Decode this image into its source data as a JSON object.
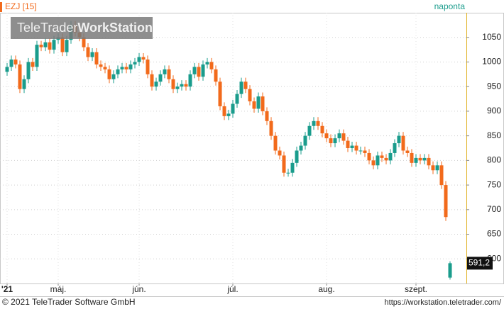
{
  "chart_data": {
    "type": "candlestick",
    "title": "EZJ [15]",
    "period": "naponta",
    "watermark": [
      "TeleTrader",
      "WorkStation"
    ],
    "footer_left": "© 2021 TeleTrader Software GmbH",
    "footer_right": "https://workstation.teletrader.com/",
    "up_color": "#1a9c8c",
    "down_color": "#f26a1b",
    "grid": true,
    "ylim": [
      550,
      1100
    ],
    "yticks": [
      600,
      650,
      700,
      750,
      800,
      850,
      900,
      950,
      1000,
      1050
    ],
    "last_value": {
      "value": 591.2,
      "label": "591,2"
    },
    "categories": [
      "'21",
      null,
      null,
      null,
      null,
      null,
      null,
      null,
      null,
      null,
      null,
      null,
      "máj.",
      null,
      null,
      null,
      null,
      null,
      null,
      null,
      null,
      null,
      null,
      null,
      null,
      null,
      null,
      null,
      null,
      null,
      null,
      "jún.",
      null,
      null,
      null,
      null,
      null,
      null,
      null,
      null,
      null,
      null,
      null,
      null,
      null,
      null,
      null,
      null,
      null,
      null,
      null,
      null,
      null,
      "júl.",
      null,
      null,
      null,
      null,
      null,
      null,
      null,
      null,
      null,
      null,
      null,
      null,
      null,
      null,
      null,
      null,
      null,
      null,
      null,
      null,
      null,
      "aug.",
      null,
      null,
      null,
      null,
      null,
      null,
      null,
      null,
      null,
      null,
      null,
      null,
      null,
      null,
      null,
      null,
      null,
      null,
      null,
      null,
      "szept.",
      null,
      null,
      null,
      null,
      null,
      null,
      null,
      null
    ],
    "open": [
      980,
      990,
      1005,
      995,
      945,
      965,
      1000,
      990,
      1035,
      1030,
      1040,
      1025,
      1045,
      1050,
      1020,
      1045,
      1075,
      1060,
      1050,
      1030,
      1010,
      1020,
      995,
      990,
      985,
      965,
      975,
      985,
      990,
      985,
      995,
      1000,
      1010,
      1005,
      975,
      950,
      960,
      975,
      985,
      965,
      945,
      950,
      955,
      950,
      975,
      990,
      970,
      995,
      1000,
      985,
      960,
      910,
      890,
      895,
      915,
      935,
      960,
      945,
      920,
      905,
      930,
      900,
      880,
      850,
      820,
      810,
      775,
      775,
      795,
      820,
      830,
      850,
      870,
      880,
      870,
      855,
      845,
      835,
      845,
      855,
      840,
      825,
      830,
      820,
      820,
      815,
      800,
      790,
      810,
      805,
      800,
      815,
      835,
      850,
      820,
      815,
      795,
      805,
      800,
      805,
      790,
      780,
      790,
      750,
      562
    ],
    "high": [
      998,
      1013,
      1013,
      1003,
      973,
      1008,
      1008,
      1043,
      1043,
      1048,
      1048,
      1053,
      1058,
      1058,
      1053,
      1083,
      1083,
      1068,
      1058,
      1038,
      1028,
      1028,
      1003,
      998,
      993,
      983,
      993,
      998,
      998,
      1003,
      1008,
      1018,
      1018,
      1013,
      983,
      968,
      983,
      993,
      993,
      973,
      958,
      963,
      963,
      983,
      998,
      998,
      1003,
      1008,
      1008,
      993,
      968,
      918,
      903,
      923,
      943,
      968,
      968,
      953,
      928,
      938,
      938,
      908,
      888,
      858,
      828,
      818,
      783,
      803,
      828,
      838,
      858,
      878,
      888,
      888,
      878,
      863,
      853,
      853,
      863,
      863,
      848,
      838,
      838,
      828,
      828,
      823,
      808,
      818,
      818,
      813,
      823,
      843,
      858,
      858,
      828,
      823,
      813,
      813,
      813,
      813,
      798,
      798,
      798,
      758,
      595
    ],
    "low": [
      972,
      982,
      987,
      937,
      937,
      957,
      982,
      982,
      1022,
      1022,
      1017,
      1017,
      1037,
      1012,
      1012,
      1037,
      1052,
      1042,
      1022,
      1002,
      1002,
      987,
      982,
      977,
      957,
      957,
      967,
      977,
      977,
      977,
      987,
      992,
      997,
      967,
      942,
      942,
      952,
      967,
      957,
      937,
      937,
      942,
      942,
      942,
      967,
      962,
      962,
      987,
      977,
      952,
      902,
      882,
      882,
      887,
      907,
      927,
      937,
      912,
      897,
      897,
      892,
      872,
      842,
      812,
      802,
      767,
      767,
      767,
      787,
      812,
      822,
      842,
      862,
      862,
      847,
      837,
      827,
      827,
      837,
      832,
      817,
      817,
      812,
      812,
      807,
      792,
      782,
      782,
      797,
      792,
      792,
      807,
      827,
      812,
      807,
      787,
      787,
      792,
      792,
      782,
      772,
      772,
      742,
      677,
      558
    ],
    "close": [
      990,
      1005,
      995,
      945,
      965,
      1000,
      990,
      1035,
      1030,
      1040,
      1025,
      1045,
      1050,
      1020,
      1045,
      1075,
      1060,
      1050,
      1030,
      1010,
      1020,
      995,
      990,
      985,
      965,
      975,
      985,
      990,
      985,
      995,
      1000,
      1010,
      1005,
      975,
      950,
      960,
      975,
      985,
      965,
      945,
      950,
      955,
      950,
      975,
      990,
      970,
      995,
      1000,
      985,
      960,
      910,
      890,
      895,
      915,
      935,
      960,
      945,
      920,
      905,
      930,
      900,
      880,
      850,
      820,
      810,
      775,
      775,
      795,
      820,
      830,
      850,
      870,
      880,
      870,
      855,
      845,
      835,
      845,
      855,
      840,
      825,
      830,
      820,
      820,
      815,
      800,
      790,
      810,
      805,
      800,
      815,
      835,
      850,
      820,
      815,
      795,
      805,
      800,
      805,
      790,
      780,
      790,
      750,
      685,
      591.2
    ]
  }
}
